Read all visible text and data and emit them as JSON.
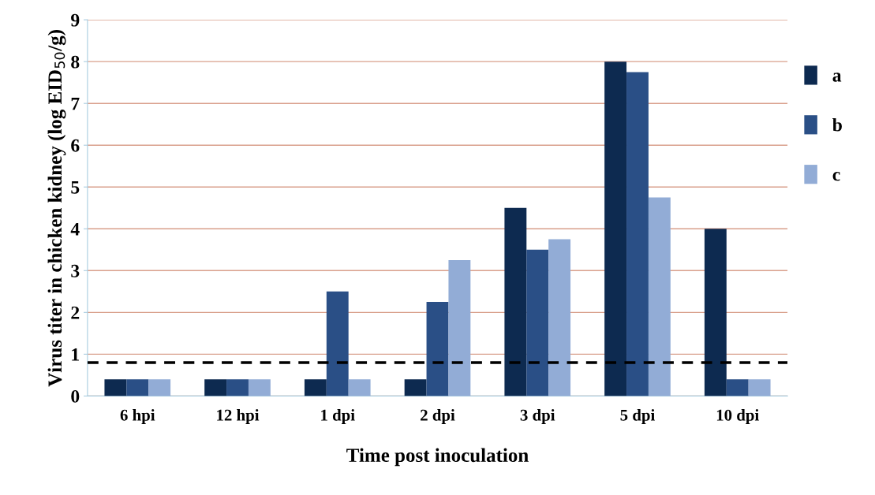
{
  "chart_data": {
    "type": "bar",
    "xlabel": "Time post inoculation",
    "ylabel": "Virus titer in chicken kidney (log EID$_{50}$/g)",
    "categories": [
      "6 hpi",
      "12 hpi",
      "1 dpi",
      "2 dpi",
      "3 dpi",
      "5 dpi",
      "10 dpi"
    ],
    "series": [
      {
        "name": "a",
        "color": "#0d2a50",
        "values": [
          0.4,
          0.4,
          0.4,
          0.4,
          4.5,
          8,
          4
        ]
      },
      {
        "name": "b",
        "color": "#2a4f86",
        "values": [
          0.4,
          0.4,
          2.5,
          2.25,
          3.5,
          7.75,
          0.4
        ]
      },
      {
        "name": "c",
        "color": "#92acd6",
        "values": [
          0.4,
          0.4,
          0.4,
          3.25,
          3.75,
          4.75,
          0.4
        ]
      }
    ],
    "ylim": [
      0,
      9
    ],
    "yticks": [
      0,
      1,
      2,
      3,
      4,
      5,
      6,
      7,
      8,
      9
    ],
    "grid": "y",
    "legend": "right",
    "ref_lines": [
      {
        "axis": "y",
        "value": 0.8,
        "color": "#000000",
        "line_style": "dashed"
      }
    ]
  }
}
